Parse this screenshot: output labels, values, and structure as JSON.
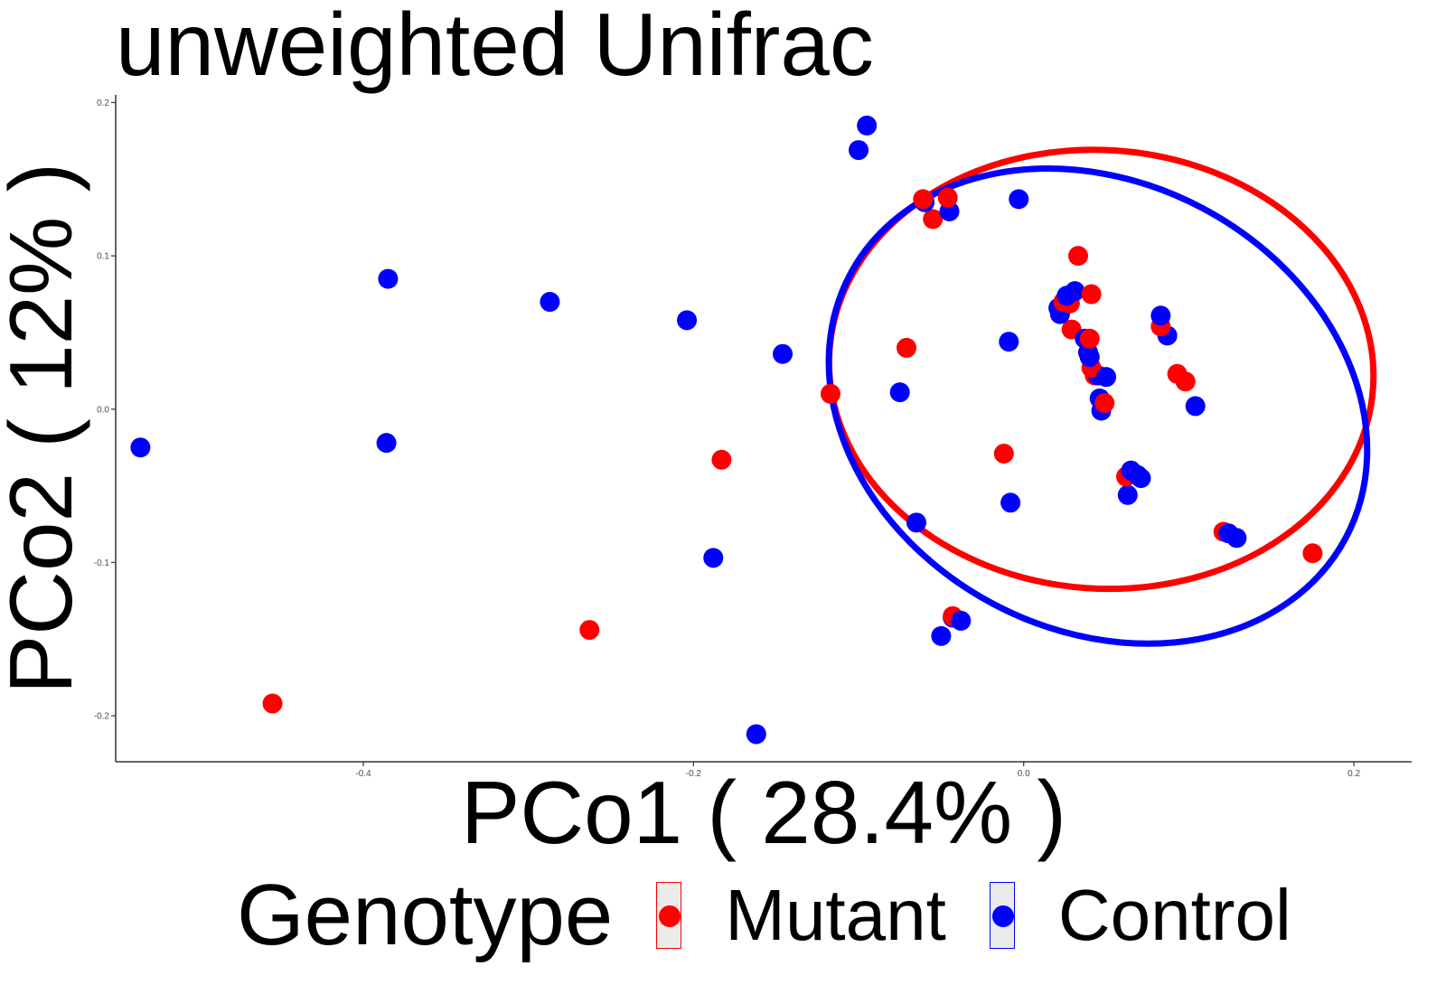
{
  "chart_data": {
    "type": "scatter",
    "title": "unweighted Unifrac",
    "xlabel": "PCo1 ( 28.4% )",
    "ylabel": "PCo2 ( 12% )",
    "xlim": [
      -0.55,
      0.235
    ],
    "ylim": [
      -0.23,
      0.205
    ],
    "xticks": [
      -0.4,
      -0.2,
      0.0,
      0.2
    ],
    "xtick_labels": [
      "-0.4",
      "-0.2",
      "0.0",
      "0.2"
    ],
    "yticks": [
      -0.2,
      -0.1,
      0.0,
      0.1,
      0.2
    ],
    "ytick_labels": [
      "-0.2",
      "-0.1",
      "0.0",
      "0.1",
      "0.2"
    ],
    "grid": false,
    "legend": {
      "title": "Genotype",
      "position": "bottom",
      "entries": [
        "Mutant",
        "Control"
      ]
    },
    "series": [
      {
        "name": "Mutant",
        "color": "#ff0000",
        "points": [
          [
            -0.455,
            -0.192
          ],
          [
            -0.263,
            -0.144
          ],
          [
            -0.183,
            -0.033
          ],
          [
            -0.117,
            0.01
          ],
          [
            -0.071,
            0.04
          ],
          [
            -0.061,
            0.137
          ],
          [
            -0.055,
            0.124
          ],
          [
            -0.046,
            0.138
          ],
          [
            -0.043,
            -0.135
          ],
          [
            -0.012,
            -0.029
          ],
          [
            0.033,
            0.1
          ],
          [
            0.028,
            0.069
          ],
          [
            0.024,
            0.07
          ],
          [
            0.029,
            0.052
          ],
          [
            0.041,
            0.075
          ],
          [
            0.04,
            0.046
          ],
          [
            0.041,
            0.027
          ],
          [
            0.043,
            0.022
          ],
          [
            0.049,
            0.004
          ],
          [
            0.062,
            -0.044
          ],
          [
            0.083,
            0.054
          ],
          [
            0.093,
            0.023
          ],
          [
            0.098,
            0.018
          ],
          [
            0.121,
            -0.08
          ],
          [
            0.175,
            -0.094
          ]
        ]
      },
      {
        "name": "Control",
        "color": "#0000ff",
        "points": [
          [
            -0.535,
            -0.025
          ],
          [
            -0.385,
            0.085
          ],
          [
            -0.386,
            -0.022
          ],
          [
            -0.287,
            0.07
          ],
          [
            -0.204,
            0.058
          ],
          [
            -0.188,
            -0.097
          ],
          [
            -0.162,
            -0.212
          ],
          [
            -0.146,
            0.036
          ],
          [
            -0.095,
            0.185
          ],
          [
            -0.1,
            0.169
          ],
          [
            -0.075,
            0.011
          ],
          [
            -0.065,
            -0.074
          ],
          [
            -0.06,
            0.135
          ],
          [
            -0.05,
            -0.148
          ],
          [
            -0.045,
            0.129
          ],
          [
            -0.043,
            -0.136
          ],
          [
            -0.038,
            -0.138
          ],
          [
            -0.003,
            0.137
          ],
          [
            -0.009,
            0.044
          ],
          [
            -0.008,
            -0.061
          ],
          [
            0.021,
            0.066
          ],
          [
            0.022,
            0.062
          ],
          [
            0.026,
            0.074
          ],
          [
            0.031,
            0.077
          ],
          [
            0.037,
            0.046
          ],
          [
            0.039,
            0.037
          ],
          [
            0.04,
            0.034
          ],
          [
            0.045,
            0.022
          ],
          [
            0.046,
            0.007
          ],
          [
            0.047,
            -0.001
          ],
          [
            0.05,
            0.021
          ],
          [
            0.063,
            -0.056
          ],
          [
            0.065,
            -0.04
          ],
          [
            0.069,
            -0.043
          ],
          [
            0.071,
            -0.045
          ],
          [
            0.083,
            0.061
          ],
          [
            0.087,
            0.048
          ],
          [
            0.104,
            0.002
          ],
          [
            0.124,
            -0.081
          ],
          [
            0.129,
            -0.084
          ]
        ]
      }
    ],
    "ellipses": [
      {
        "series": "Mutant",
        "center": [
          0.047,
          0.026
        ],
        "semi_axes": [
          0.165,
          0.143
        ],
        "rotation_deg": -4
      },
      {
        "series": "Control",
        "center": [
          0.045,
          0.002
        ],
        "semi_axes": [
          0.17,
          0.146
        ],
        "rotation_deg": -28
      }
    ]
  }
}
